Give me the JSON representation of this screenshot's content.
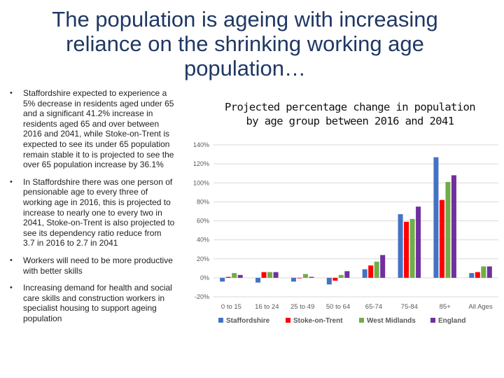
{
  "slide": {
    "title_line1": "The population is ageing with increasing",
    "title_line2": "reliance on the shrinking working age",
    "title_line3": "population…",
    "bullets": [
      "Staffordshire expected to experience a 5% decrease in residents aged under 65 and a significant 41.2% increase in residents aged 65 and over between 2016 and 2041, while Stoke-on-Trent is expected to see its under 65 population remain stable it to is projected to see the over 65 population increase by 36.1%",
      "In Staffordshire there was one person of pensionable age to every three of working age in 2016, this is projected to increase to nearly one to every two in 2041, Stoke-on-Trent is also projected to see its dependency ratio reduce from 3.7 in 2016 to 2.7 in 2041",
      "Workers will need to be more productive with better skills",
      "Increasing demand for health and social care skills and construction workers in specialist housing to support ageing population"
    ],
    "bullet_symbol": "•"
  },
  "chart_data": {
    "type": "bar",
    "title_line1": "Projected percentage change in population",
    "title_line2": "by age group between 2016 and 2041",
    "categories": [
      "0 to 15",
      "16 to 24",
      "25 to 49",
      "50 to 64",
      "65-74",
      "75-84",
      "85+",
      "All Ages"
    ],
    "series": [
      {
        "name": "Staffordshire",
        "color": "#4472c4",
        "values": [
          -4,
          -5,
          -4,
          -7,
          9,
          67,
          127,
          5
        ]
      },
      {
        "name": "Stoke-on-Trent",
        "color": "#ff0000",
        "values": [
          1,
          6,
          0,
          -3,
          13,
          59,
          82,
          6
        ]
      },
      {
        "name": "West Midlands",
        "color": "#70ad47",
        "values": [
          5,
          6,
          4,
          3,
          17,
          62,
          101,
          12
        ]
      },
      {
        "name": "England",
        "color": "#7030a0",
        "values": [
          3,
          6,
          1,
          7,
          24,
          75,
          108,
          12
        ]
      }
    ],
    "ylim": [
      -20,
      140
    ],
    "yticks": [
      -20,
      0,
      20,
      40,
      60,
      80,
      100,
      120,
      140
    ],
    "ytick_labels": [
      "-20%",
      "0%",
      "20%",
      "40%",
      "60%",
      "80%",
      "100%",
      "120%",
      "140%"
    ],
    "grid": true,
    "legend_position": "bottom"
  }
}
